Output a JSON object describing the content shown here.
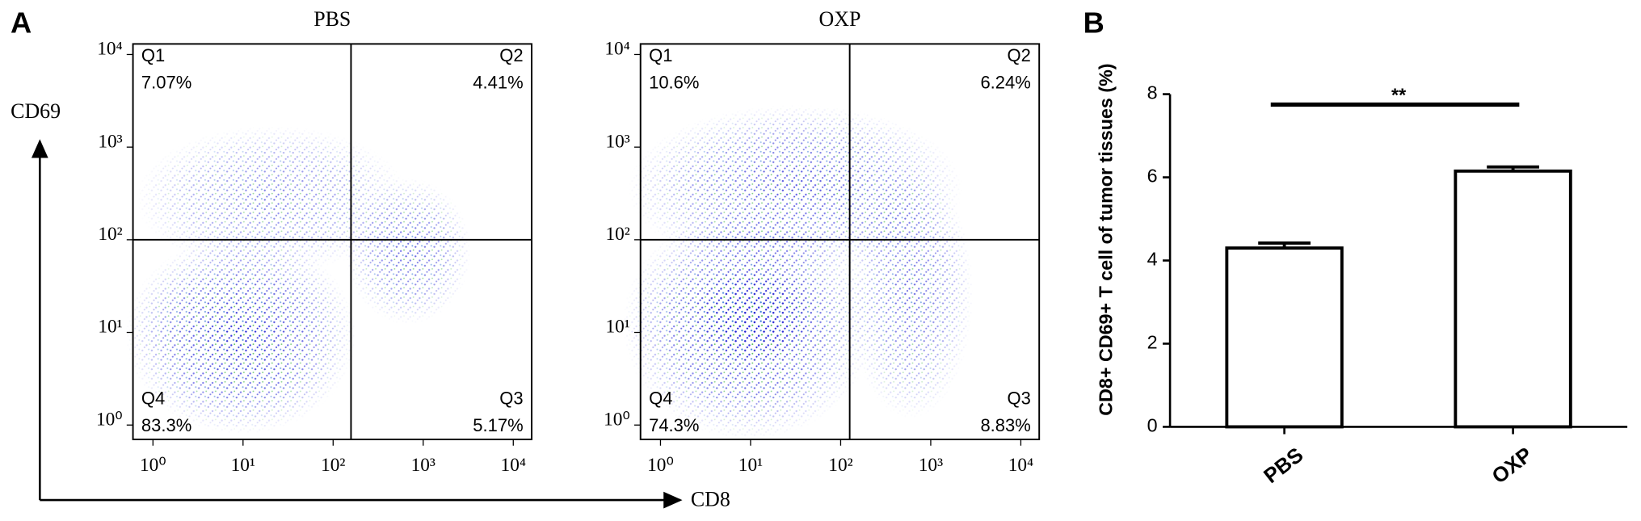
{
  "panel_labels": [
    "A",
    "B"
  ],
  "axis_arrows": {
    "y": "CD69",
    "x": "CD8"
  },
  "chart_data": [
    {
      "type": "flow",
      "title": "PBS",
      "log_scale": true,
      "xlim": [
        0.6,
        16000
      ],
      "ylim": [
        0.7,
        13000
      ],
      "xticks": [
        {
          "value": 1,
          "label": "10⁰"
        },
        {
          "value": 10,
          "label": "10¹"
        },
        {
          "value": 100,
          "label": "10²"
        },
        {
          "value": 1000,
          "label": "10³"
        },
        {
          "value": 10000,
          "label": "10⁴"
        }
      ],
      "yticks": [
        {
          "value": 1,
          "label": "10⁰"
        },
        {
          "value": 10,
          "label": "10¹"
        },
        {
          "value": 100,
          "label": "10²"
        },
        {
          "value": 1000,
          "label": "10³"
        },
        {
          "value": 10000,
          "label": "10⁴"
        }
      ],
      "gate": {
        "x": 158,
        "y": 100
      },
      "gate_color": "#000000",
      "quadrants": {
        "names": [
          "Q1",
          "Q2",
          "Q3",
          "Q4"
        ],
        "values": [
          7.07,
          4.41,
          5.17,
          83.3
        ],
        "value_labels": [
          "7.07%",
          "4.41%",
          "5.17%",
          "83.3%"
        ]
      }
    },
    {
      "type": "flow",
      "title": "OXP",
      "log_scale": true,
      "xlim": [
        0.6,
        16000
      ],
      "ylim": [
        0.7,
        13000
      ],
      "xticks": [
        {
          "value": 1,
          "label": "10⁰"
        },
        {
          "value": 10,
          "label": "10¹"
        },
        {
          "value": 100,
          "label": "10²"
        },
        {
          "value": 1000,
          "label": "10³"
        },
        {
          "value": 10000,
          "label": "10⁴"
        }
      ],
      "yticks": [
        {
          "value": 1,
          "label": "10⁰"
        },
        {
          "value": 10,
          "label": "10¹"
        },
        {
          "value": 100,
          "label": "10²"
        },
        {
          "value": 1000,
          "label": "10³"
        },
        {
          "value": 10000,
          "label": "10⁴"
        }
      ],
      "gate": {
        "x": 126,
        "y": 100
      },
      "gate_color": "#000000",
      "quadrants": {
        "names": [
          "Q1",
          "Q2",
          "Q3",
          "Q4"
        ],
        "values": [
          10.6,
          6.24,
          8.83,
          74.3
        ],
        "value_labels": [
          "10.6%",
          "6.24%",
          "8.83%",
          "74.3%"
        ]
      }
    },
    {
      "type": "bar",
      "ylabel": "CD8+ CD69+ T cell of tumor tissues (%)",
      "categories": [
        "PBS",
        "OXP"
      ],
      "values": [
        4.3,
        6.15
      ],
      "errors": [
        0.12,
        0.1
      ],
      "color": "#ffffff",
      "edgecolor": "#000000",
      "ylim": [
        0,
        8
      ],
      "yticks": [
        0,
        2,
        4,
        6,
        8
      ],
      "annotation": "**"
    }
  ]
}
